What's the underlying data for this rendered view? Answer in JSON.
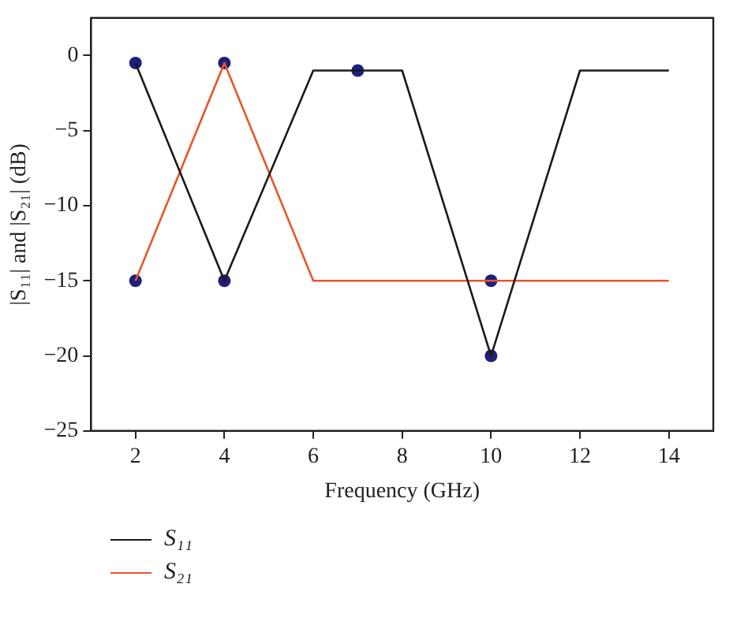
{
  "chart_data": {
    "type": "line",
    "xlabel": "Frequency (GHz)",
    "ylabel": "|S₁₁| and |S₂₁| (dB)",
    "xlim": [
      1,
      15
    ],
    "xticks": [
      2,
      4,
      6,
      8,
      10,
      12,
      14
    ],
    "ylim": [
      -25,
      2.5
    ],
    "yticks": [
      -25,
      -20,
      -15,
      -10,
      -5,
      0
    ],
    "grid": false,
    "legend": "bottom",
    "marker": "none",
    "series": [
      {
        "name": "S₁₁",
        "color": "#1a1a1a",
        "x": [
          2,
          4,
          6,
          8,
          10,
          12,
          14
        ],
        "values": [
          -0.5,
          -15,
          -1,
          -1,
          -20,
          -1,
          -1
        ]
      },
      {
        "name": "S₂₁",
        "color": "#e8552a",
        "x": [
          2,
          4,
          6,
          14
        ],
        "values": [
          -15,
          -0.5,
          -15,
          -15
        ]
      },
      {
        "type": "scatter",
        "marker": "circle",
        "color": "#1f1f7a",
        "x": [
          2,
          4,
          7,
          10,
          2,
          4,
          10
        ],
        "values": [
          -0.5,
          -15,
          -1,
          -20,
          -15,
          -0.5,
          -15
        ]
      }
    ]
  }
}
